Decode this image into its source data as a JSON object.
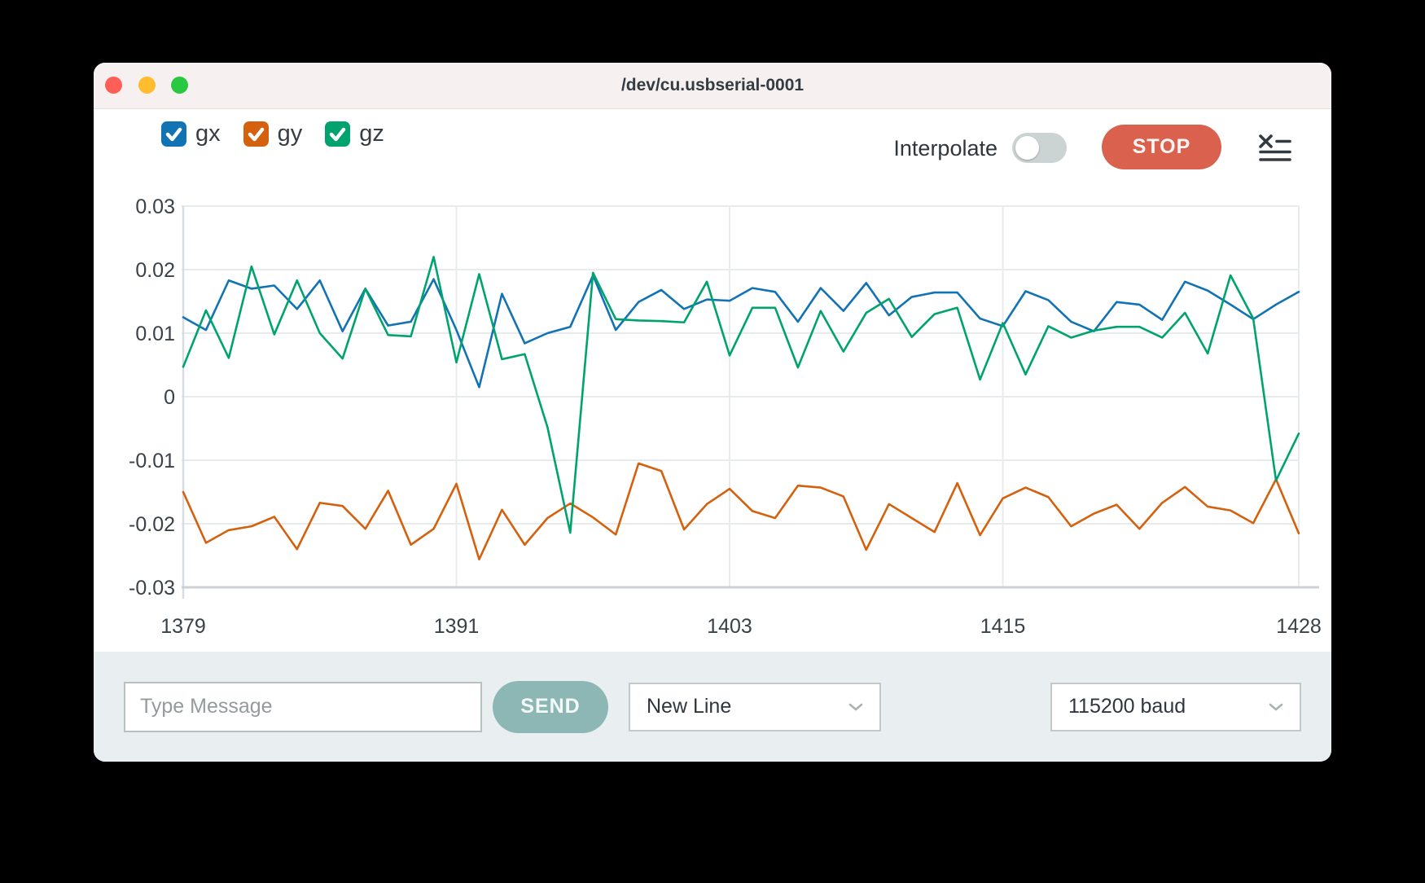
{
  "window": {
    "title": "/dev/cu.usbserial-0001"
  },
  "colors": {
    "traffic_lights": [
      "#ff5f57",
      "#febc2e",
      "#28c840"
    ],
    "accent_blue": "#1273b4",
    "accent_orange": "#d4610d",
    "accent_green": "#00a36d",
    "stop_red": "#d9614e",
    "send_teal": "#8db7b4",
    "grid": "#e7ebee",
    "axis": "#ccd2d6"
  },
  "legend": [
    {
      "label": "gx",
      "color": "#1273b4",
      "checked": true
    },
    {
      "label": "gy",
      "color": "#d4610d",
      "checked": true
    },
    {
      "label": "gz",
      "color": "#00a36d",
      "checked": true
    }
  ],
  "toolbar": {
    "interpolate_label": "Interpolate",
    "interpolate_on": false,
    "stop_label": "STOP"
  },
  "chart_data": {
    "type": "line",
    "x": [
      1379,
      1380,
      1381,
      1382,
      1383,
      1384,
      1385,
      1386,
      1387,
      1388,
      1389,
      1390,
      1391,
      1392,
      1393,
      1394,
      1395,
      1396,
      1397,
      1398,
      1399,
      1400,
      1401,
      1402,
      1403,
      1404,
      1405,
      1406,
      1407,
      1408,
      1409,
      1410,
      1411,
      1412,
      1413,
      1414,
      1415,
      1416,
      1417,
      1418,
      1419,
      1420,
      1421,
      1422,
      1423,
      1424,
      1425,
      1426,
      1427,
      1428
    ],
    "series": [
      {
        "name": "gx",
        "color": "#1273b4",
        "values": [
          0.0125,
          0.0105,
          0.0183,
          0.017,
          0.0175,
          0.0138,
          0.0183,
          0.0103,
          0.017,
          0.0112,
          0.0118,
          0.0185,
          0.0105,
          0.0015,
          0.0162,
          0.0084,
          0.01,
          0.011,
          0.0191,
          0.0105,
          0.0149,
          0.0168,
          0.0138,
          0.0153,
          0.0151,
          0.0171,
          0.0165,
          0.0118,
          0.0171,
          0.0135,
          0.0179,
          0.0128,
          0.0157,
          0.0164,
          0.0164,
          0.0123,
          0.0111,
          0.0166,
          0.0152,
          0.0118,
          0.0103,
          0.0149,
          0.0145,
          0.0121,
          0.0181,
          0.0167,
          0.0145,
          0.0122,
          0.0145,
          0.0165
        ]
      },
      {
        "name": "gy",
        "color": "#d4610d",
        "values": [
          -0.015,
          -0.023,
          -0.021,
          -0.0204,
          -0.0189,
          -0.024,
          -0.0167,
          -0.0172,
          -0.0208,
          -0.0148,
          -0.0233,
          -0.0208,
          -0.0137,
          -0.0256,
          -0.0178,
          -0.0233,
          -0.0191,
          -0.0168,
          -0.019,
          -0.0217,
          -0.0105,
          -0.0117,
          -0.0209,
          -0.0169,
          -0.0145,
          -0.018,
          -0.0191,
          -0.014,
          -0.0143,
          -0.0157,
          -0.0241,
          -0.0169,
          -0.0191,
          -0.0213,
          -0.0136,
          -0.0218,
          -0.016,
          -0.0143,
          -0.0158,
          -0.0204,
          -0.0184,
          -0.017,
          -0.0208,
          -0.0167,
          -0.0142,
          -0.0173,
          -0.0179,
          -0.0199,
          -0.013,
          -0.0215
        ]
      },
      {
        "name": "gz",
        "color": "#00a36d",
        "values": [
          0.0047,
          0.0136,
          0.0061,
          0.0205,
          0.0098,
          0.0183,
          0.01,
          0.006,
          0.017,
          0.0097,
          0.0095,
          0.022,
          0.0054,
          0.0193,
          0.0059,
          0.0067,
          -0.0048,
          -0.0214,
          0.0195,
          0.0122,
          0.012,
          0.0119,
          0.0117,
          0.0181,
          0.0065,
          0.014,
          0.014,
          0.0046,
          0.0135,
          0.0071,
          0.0132,
          0.0154,
          0.0094,
          0.013,
          0.014,
          0.0027,
          0.0116,
          0.0035,
          0.0111,
          0.0093,
          0.0104,
          0.011,
          0.011,
          0.0093,
          0.0132,
          0.0068,
          0.0191,
          0.0123,
          -0.0132,
          -0.0058
        ]
      }
    ],
    "title": "",
    "xlabel": "",
    "ylabel": "",
    "xlim": [
      1379,
      1428
    ],
    "ylim": [
      -0.03,
      0.03
    ],
    "xticks": [
      1379,
      1391,
      1403,
      1415,
      1428
    ],
    "yticks": [
      0.03,
      0.02,
      0.01,
      0,
      -0.01,
      -0.02,
      -0.03
    ],
    "grid": true,
    "legend_position": "top-left"
  },
  "bottom_bar": {
    "message_placeholder": "Type Message",
    "send_label": "SEND",
    "line_ending_selected": "New Line",
    "baud_selected": "115200 baud"
  }
}
